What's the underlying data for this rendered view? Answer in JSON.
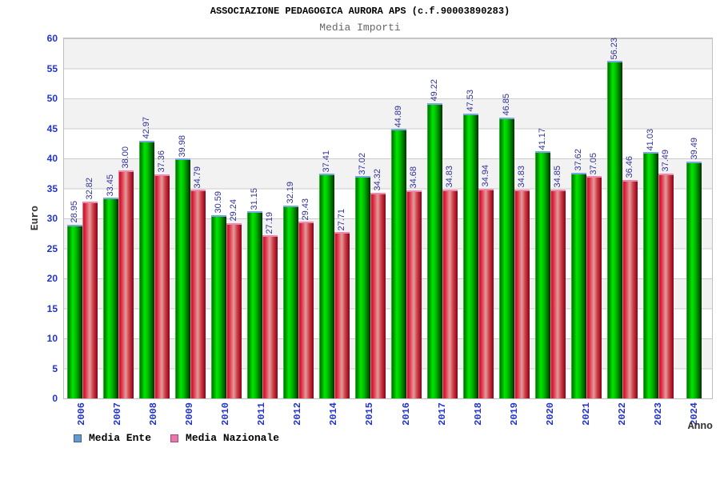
{
  "chart_data": {
    "type": "bar",
    "title": "ASSOCIAZIONE PEDAGOGICA AURORA APS (c.f.90003890283)",
    "subtitle": "Media Importi",
    "xlabel": "Anno",
    "ylabel": "Euro",
    "ylim": [
      0,
      60
    ],
    "ytick_step": 5,
    "grid": true,
    "band_fill": true,
    "legend_position": "bottom-left",
    "value_label_format": "2-decimals-rotated-90",
    "categories": [
      "2006",
      "2007",
      "2008",
      "2009",
      "2010",
      "2011",
      "2012",
      "2014",
      "2015",
      "2016",
      "2017",
      "2018",
      "2019",
      "2020",
      "2021",
      "2022",
      "2023",
      "2024"
    ],
    "series": [
      {
        "name": "Media Ente",
        "legend_color": "#6699cc",
        "bar_color": "green-gradient",
        "values": [
          28.95,
          33.45,
          42.97,
          39.98,
          30.59,
          31.15,
          32.19,
          37.41,
          37.02,
          44.89,
          49.22,
          47.53,
          46.85,
          41.17,
          37.62,
          56.23,
          41.03,
          39.49
        ]
      },
      {
        "name": "Media Nazionale",
        "legend_color": "#e878a8",
        "bar_color": "red-gradient",
        "values": [
          32.82,
          38.0,
          37.36,
          34.79,
          29.24,
          27.19,
          29.43,
          27.71,
          34.32,
          34.68,
          34.83,
          34.94,
          34.83,
          34.85,
          37.05,
          36.46,
          37.49,
          null
        ]
      }
    ],
    "colors": {
      "axis_text": "#2233cc",
      "value_label": "#333399",
      "title": "#000000",
      "subtitle": "#666666",
      "axis_title": "#333333",
      "band_gray": "#f2f2f2",
      "grid_line": "#cccccc",
      "plot_border": "#c0c0c0"
    }
  }
}
